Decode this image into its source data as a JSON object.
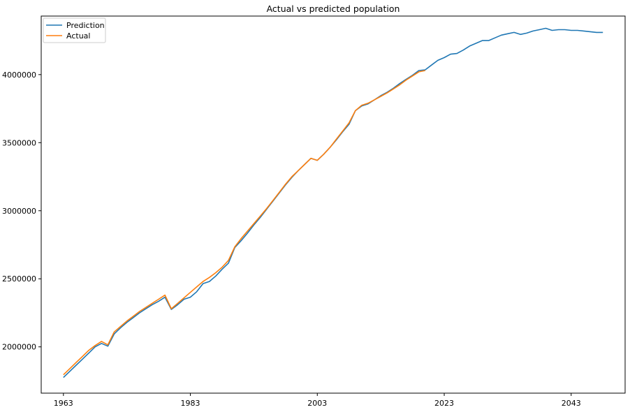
{
  "chart_data": {
    "type": "line",
    "title": "Actual vs predicted population",
    "xlabel": "",
    "ylabel": "",
    "xlim": [
      1959.5,
      2051.5
    ],
    "ylim": [
      1660000,
      4430000
    ],
    "x_ticks": [
      1963,
      1983,
      2003,
      2023,
      2043
    ],
    "x_tick_labels": [
      "1963",
      "1983",
      "2003",
      "2023",
      "2043"
    ],
    "y_ticks": [
      2000000,
      2500000,
      3000000,
      3500000,
      4000000
    ],
    "y_tick_labels": [
      "2000000",
      "2500000",
      "3000000",
      "3500000",
      "4000000"
    ],
    "grid": false,
    "legend_position": "top-left",
    "series": [
      {
        "name": "Prediction",
        "color": "#1f77b4",
        "x": [
          1963,
          1964,
          1965,
          1966,
          1967,
          1968,
          1969,
          1970,
          1971,
          1972,
          1973,
          1974,
          1975,
          1976,
          1977,
          1978,
          1979,
          1980,
          1981,
          1982,
          1983,
          1984,
          1985,
          1986,
          1987,
          1988,
          1989,
          1990,
          1991,
          1992,
          1993,
          1994,
          1995,
          1996,
          1997,
          1998,
          1999,
          2000,
          2001,
          2002,
          2003,
          2004,
          2005,
          2006,
          2007,
          2008,
          2009,
          2010,
          2011,
          2012,
          2013,
          2014,
          2015,
          2016,
          2017,
          2018,
          2019,
          2020,
          2021,
          2022,
          2023,
          2024,
          2025,
          2026,
          2027,
          2028,
          2029,
          2030,
          2031,
          2032,
          2033,
          2034,
          2035,
          2036,
          2037,
          2038,
          2039,
          2040,
          2041,
          2042,
          2043,
          2044,
          2045,
          2046,
          2047,
          2048
        ],
        "y": [
          1775000,
          1820000,
          1865000,
          1910000,
          1955000,
          2000000,
          2025000,
          2005000,
          2095000,
          2140000,
          2180000,
          2215000,
          2250000,
          2280000,
          2310000,
          2335000,
          2365000,
          2275000,
          2310000,
          2350000,
          2365000,
          2405000,
          2465000,
          2480000,
          2520000,
          2570000,
          2615000,
          2730000,
          2780000,
          2835000,
          2895000,
          2950000,
          3010000,
          3070000,
          3130000,
          3190000,
          3245000,
          3295000,
          3340000,
          3385000,
          3370000,
          3415000,
          3465000,
          3520000,
          3580000,
          3635000,
          3735000,
          3770000,
          3785000,
          3815000,
          3845000,
          3870000,
          3900000,
          3935000,
          3965000,
          3995000,
          4030000,
          4035000,
          4070000,
          4105000,
          4125000,
          4150000,
          4155000,
          4180000,
          4210000,
          4230000,
          4250000,
          4250000,
          4270000,
          4290000,
          4300000,
          4310000,
          4295000,
          4305000,
          4320000,
          4330000,
          4340000,
          4325000,
          4330000,
          4330000,
          4325000,
          4325000,
          4320000,
          4315000,
          4310000,
          4310000
        ]
      },
      {
        "name": "Actual",
        "color": "#ff7f0e",
        "x": [
          1963,
          1964,
          1965,
          1966,
          1967,
          1968,
          1969,
          1970,
          1971,
          1972,
          1973,
          1974,
          1975,
          1976,
          1977,
          1978,
          1979,
          1980,
          1981,
          1982,
          1983,
          1984,
          1985,
          1986,
          1987,
          1988,
          1989,
          1990,
          1991,
          1992,
          1993,
          1994,
          1995,
          1996,
          1997,
          1998,
          1999,
          2000,
          2001,
          2002,
          2003,
          2004,
          2005,
          2006,
          2007,
          2008,
          2009,
          2010,
          2011,
          2012,
          2013,
          2014,
          2015,
          2016,
          2017,
          2018,
          2019,
          2020
        ],
        "y": [
          1795000,
          1840000,
          1885000,
          1930000,
          1975000,
          2010000,
          2040000,
          2015000,
          2110000,
          2150000,
          2190000,
          2225000,
          2260000,
          2290000,
          2320000,
          2350000,
          2380000,
          2280000,
          2320000,
          2360000,
          2400000,
          2440000,
          2480000,
          2510000,
          2545000,
          2585000,
          2635000,
          2735000,
          2795000,
          2850000,
          2905000,
          2960000,
          3015000,
          3075000,
          3135000,
          3195000,
          3250000,
          3295000,
          3340000,
          3385000,
          3370000,
          3415000,
          3465000,
          3525000,
          3585000,
          3645000,
          3735000,
          3775000,
          3790000,
          3815000,
          3840000,
          3865000,
          3895000,
          3925000,
          3960000,
          3990000,
          4020000,
          4030000
        ]
      }
    ]
  }
}
